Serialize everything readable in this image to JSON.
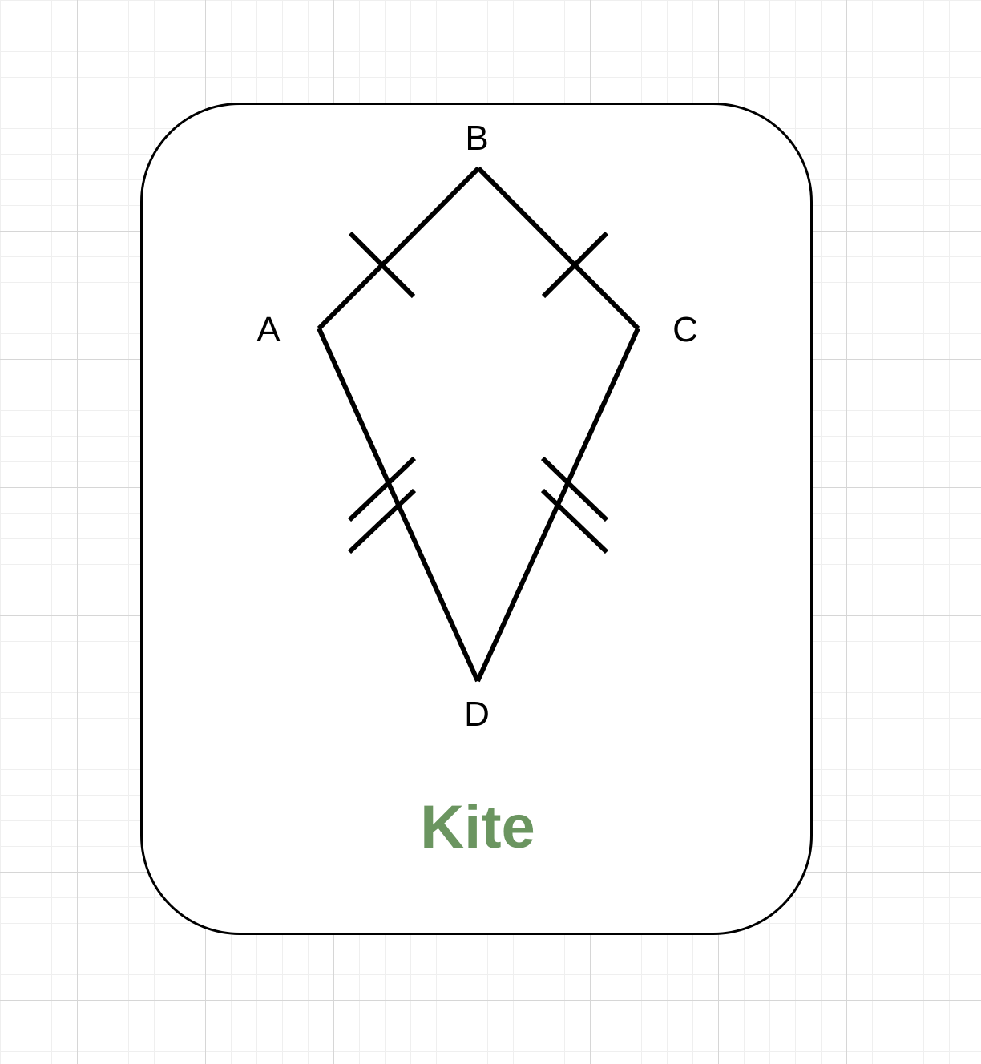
{
  "diagram": {
    "vertices": {
      "A": "A",
      "B": "B",
      "C": "C",
      "D": "D"
    },
    "title": "Kite",
    "colors": {
      "title": "#6b9560",
      "stroke": "#000000"
    }
  }
}
